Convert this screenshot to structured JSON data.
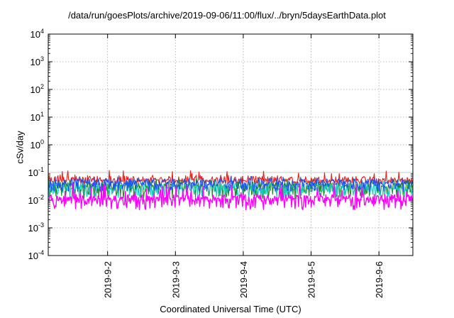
{
  "chart_data": {
    "type": "line",
    "title": "/data/run/goesPlots/archive/2019-09-06/11:00/flux/../bryn/5daysEarthData.plot",
    "xlabel": "Coordinated Universal Time (UTC)",
    "ylabel": "cSv/day",
    "yscale": "log",
    "ylim": [
      0.0001,
      10000
    ],
    "xlim": [
      "2019-09-01 03:00",
      "2019-09-06 12:00"
    ],
    "x_ticks": [
      "2019-9-2",
      "2019-9-3",
      "2019-9-4",
      "2019-9-5",
      "2019-9-6"
    ],
    "y_ticks": [
      {
        "base": "10",
        "exp": "-4",
        "value": 0.0001
      },
      {
        "base": "10",
        "exp": "-3",
        "value": 0.001
      },
      {
        "base": "10",
        "exp": "-2",
        "value": 0.01
      },
      {
        "base": "10",
        "exp": "-1",
        "value": 0.1
      },
      {
        "base": "10",
        "exp": "0",
        "value": 1
      },
      {
        "base": "10",
        "exp": "1",
        "value": 10
      },
      {
        "base": "10",
        "exp": "2",
        "value": 100
      },
      {
        "base": "10",
        "exp": "3",
        "value": 1000
      },
      {
        "base": "10",
        "exp": "4",
        "value": 10000
      }
    ],
    "grid": true,
    "reference_line": {
      "value": 0.1,
      "color": "#c8c8c8"
    },
    "series": [
      {
        "color": "#e8201a",
        "baseline": 0.055,
        "low": 0.04,
        "high": 0.12
      },
      {
        "color": "#1a8a1a",
        "baseline": 0.035,
        "low": 0.011,
        "high": 0.06
      },
      {
        "color": "#18c8b8",
        "baseline": 0.03,
        "low": 0.012,
        "high": 0.05
      },
      {
        "color": "#2050f0",
        "baseline": 0.045,
        "low": 0.02,
        "high": 0.075
      },
      {
        "color": "#ff00ff",
        "baseline": 0.012,
        "low": 0.0045,
        "high": 0.04
      }
    ]
  }
}
